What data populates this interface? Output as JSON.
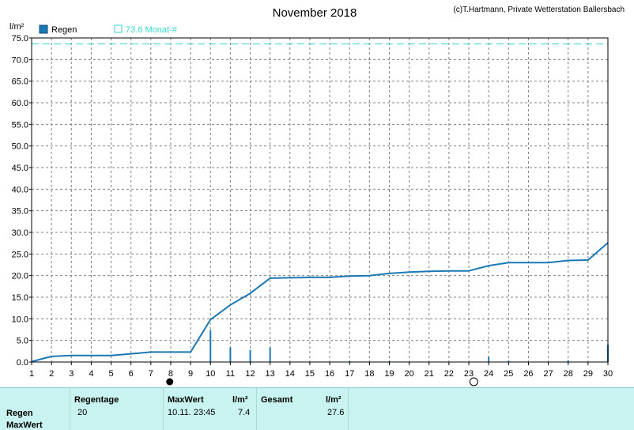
{
  "header": {
    "title": "November 2018",
    "copyright": "(c)T.Hartmann, Private Wetterstation Ballersbach",
    "unit": "l/m²"
  },
  "legend": {
    "series_label": "Regen",
    "ref_label": "73.6 Monat-#"
  },
  "colors": {
    "series": "#1a78b4",
    "reference": "#33d6cc",
    "grid": "#808080",
    "table_bg": "#c8f3f0"
  },
  "chart_data": {
    "type": "line",
    "xlabel": "",
    "ylabel": "l/m²",
    "xlim": [
      1,
      30
    ],
    "ylim": [
      0,
      75
    ],
    "y_ticks": [
      "0.0",
      "5.0",
      "10.0",
      "15.0",
      "20.0",
      "25.0",
      "30.0",
      "35.0",
      "40.0",
      "45.0",
      "50.0",
      "55.0",
      "60.0",
      "65.0",
      "70.0",
      "75.0"
    ],
    "x_ticks": [
      "1",
      "2",
      "3",
      "4",
      "5",
      "6",
      "7",
      "8",
      "9",
      "10",
      "11",
      "12",
      "13",
      "14",
      "15",
      "16",
      "17",
      "18",
      "19",
      "20",
      "21",
      "22",
      "23",
      "24",
      "25",
      "26",
      "27",
      "28",
      "29",
      "30"
    ],
    "grid": true,
    "cumulative": {
      "x": [
        1,
        2,
        3,
        4,
        5,
        6,
        7,
        8,
        9,
        10,
        11,
        12,
        13,
        14,
        15,
        16,
        17,
        18,
        19,
        20,
        21,
        22,
        23,
        24,
        25,
        26,
        27,
        28,
        29,
        30
      ],
      "y": [
        0.1,
        1.3,
        1.5,
        1.5,
        1.5,
        1.9,
        2.3,
        2.3,
        2.3,
        9.8,
        13.2,
        15.9,
        19.4,
        19.5,
        19.6,
        19.6,
        19.9,
        20.0,
        20.5,
        20.8,
        21.0,
        21.1,
        21.1,
        22.3,
        23.0,
        23.0,
        23.0,
        23.5,
        23.6,
        27.6
      ]
    },
    "daily_bars": {
      "x": [
        10,
        11,
        12,
        13,
        17,
        19,
        24,
        25,
        28,
        30
      ],
      "y": [
        7.4,
        3.4,
        2.8,
        3.4,
        0.2,
        0.2,
        1.2,
        0.3,
        0.4,
        4.0
      ]
    },
    "reference_line": {
      "value": 73.6
    },
    "moon_markers": [
      {
        "x": 7.95,
        "phase": "new"
      },
      {
        "x": 23.25,
        "phase": "full"
      }
    ]
  },
  "table": {
    "row_labels": [
      "Regen",
      "MaxWert"
    ],
    "regentage_header": "Regentage",
    "regentage_value": "20",
    "maxwert_header": "MaxWert",
    "maxwert_unit": "l/m²",
    "maxwert_date": "10.11.  23:45",
    "maxwert_value": "7.4",
    "gesamt_header": "Gesamt",
    "gesamt_unit": "l/m²",
    "gesamt_value": "27.6"
  }
}
